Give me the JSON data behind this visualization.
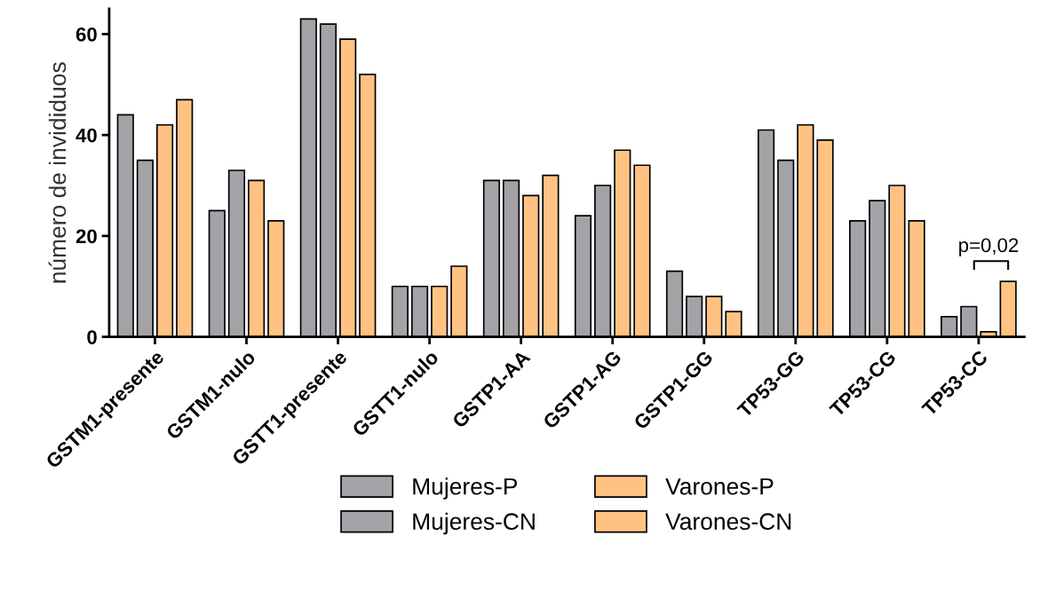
{
  "chart_data": {
    "type": "bar",
    "ylabel": "número de invididuos",
    "categories": [
      "GSTM1-presente",
      "GSTM1-nulo",
      "GSTT1-presente",
      "GSTT1-nulo",
      "GSTP1-AA",
      "GSTP1-AG",
      "GSTP1-GG",
      "TP53-GG",
      "TP53-CG",
      "TP53-CC"
    ],
    "series": [
      {
        "name": "Mujeres-P",
        "color": "#a3a3a7",
        "values": [
          44,
          25,
          63,
          10,
          31,
          24,
          13,
          41,
          23,
          4
        ]
      },
      {
        "name": "Mujeres-CN",
        "color": "#a3a3a7",
        "values": [
          35,
          33,
          62,
          10,
          31,
          30,
          8,
          35,
          27,
          6
        ]
      },
      {
        "name": "Varones-P",
        "color": "#ffc282",
        "values": [
          42,
          31,
          59,
          10,
          28,
          37,
          8,
          42,
          30,
          1
        ]
      },
      {
        "name": "Varones-CN",
        "color": "#ffc282",
        "values": [
          47,
          23,
          52,
          14,
          32,
          34,
          5,
          39,
          23,
          11
        ]
      }
    ],
    "ylim": [
      0,
      65
    ],
    "yticks": [
      0,
      20,
      40,
      60
    ],
    "grid": false,
    "legend": "bottom",
    "annotations": [
      "p=0,02"
    ]
  }
}
